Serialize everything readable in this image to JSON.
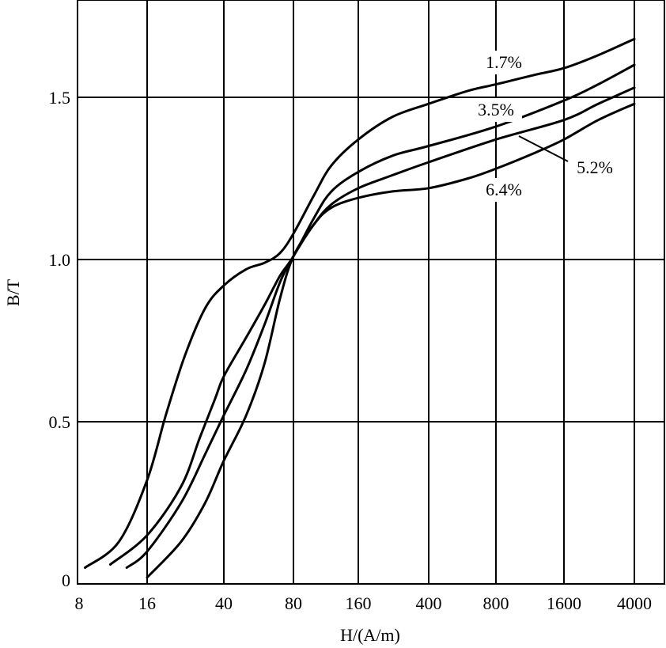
{
  "chart_data": {
    "type": "line",
    "xlabel": "H/(A/m)",
    "ylabel": "B/T",
    "x_scale": "categorical-log",
    "x_ticks": [
      "8",
      "16",
      "40",
      "80",
      "160",
      "400",
      "800",
      "1600",
      "4000"
    ],
    "y_ticks": [
      "0",
      "0.5",
      "1.0",
      "1.5"
    ],
    "ylim": [
      0,
      1.8
    ],
    "grid": true,
    "series": [
      {
        "name": "1.7%",
        "points": [
          [
            8.5,
            0.05
          ],
          [
            12,
            0.13
          ],
          [
            16,
            0.32
          ],
          [
            20,
            0.52
          ],
          [
            25,
            0.7
          ],
          [
            32,
            0.85
          ],
          [
            40,
            0.92
          ],
          [
            50,
            0.97
          ],
          [
            60,
            0.99
          ],
          [
            70,
            1.02
          ],
          [
            80,
            1.08
          ],
          [
            100,
            1.2
          ],
          [
            120,
            1.29
          ],
          [
            160,
            1.37
          ],
          [
            250,
            1.44
          ],
          [
            400,
            1.48
          ],
          [
            600,
            1.52
          ],
          [
            800,
            1.54
          ],
          [
            1200,
            1.57
          ],
          [
            1600,
            1.59
          ],
          [
            2500,
            1.63
          ],
          [
            4000,
            1.68
          ]
        ]
      },
      {
        "name": "3.5%",
        "points": [
          [
            11,
            0.06
          ],
          [
            16,
            0.15
          ],
          [
            24,
            0.3
          ],
          [
            30,
            0.45
          ],
          [
            36,
            0.57
          ],
          [
            40,
            0.64
          ],
          [
            50,
            0.76
          ],
          [
            60,
            0.86
          ],
          [
            70,
            0.95
          ],
          [
            80,
            1.01
          ],
          [
            100,
            1.13
          ],
          [
            120,
            1.21
          ],
          [
            160,
            1.27
          ],
          [
            250,
            1.32
          ],
          [
            400,
            1.35
          ],
          [
            800,
            1.41
          ],
          [
            1600,
            1.49
          ],
          [
            2500,
            1.54
          ],
          [
            4000,
            1.6
          ]
        ]
      },
      {
        "name": "5.2%",
        "points": [
          [
            13,
            0.05
          ],
          [
            16,
            0.1
          ],
          [
            24,
            0.25
          ],
          [
            32,
            0.4
          ],
          [
            40,
            0.52
          ],
          [
            50,
            0.66
          ],
          [
            60,
            0.8
          ],
          [
            70,
            0.93
          ],
          [
            80,
            1.01
          ],
          [
            100,
            1.11
          ],
          [
            120,
            1.17
          ],
          [
            160,
            1.22
          ],
          [
            250,
            1.26
          ],
          [
            400,
            1.3
          ],
          [
            800,
            1.37
          ],
          [
            1600,
            1.43
          ],
          [
            2500,
            1.48
          ],
          [
            4000,
            1.53
          ]
        ]
      },
      {
        "name": "6.4%",
        "points": [
          [
            16,
            0.02
          ],
          [
            24,
            0.13
          ],
          [
            32,
            0.25
          ],
          [
            40,
            0.38
          ],
          [
            50,
            0.52
          ],
          [
            60,
            0.68
          ],
          [
            70,
            0.88
          ],
          [
            80,
            1.01
          ],
          [
            100,
            1.11
          ],
          [
            120,
            1.16
          ],
          [
            160,
            1.19
          ],
          [
            250,
            1.21
          ],
          [
            400,
            1.22
          ],
          [
            600,
            1.25
          ],
          [
            800,
            1.28
          ],
          [
            1200,
            1.33
          ],
          [
            1600,
            1.37
          ],
          [
            2500,
            1.43
          ],
          [
            4000,
            1.48
          ]
        ]
      }
    ],
    "labels": [
      {
        "series": "1.7%",
        "text": "1.7%"
      },
      {
        "series": "3.5%",
        "text": "3.5%"
      },
      {
        "series": "5.2%",
        "text": "5.2%"
      },
      {
        "series": "6.4%",
        "text": "6.4%"
      }
    ]
  }
}
